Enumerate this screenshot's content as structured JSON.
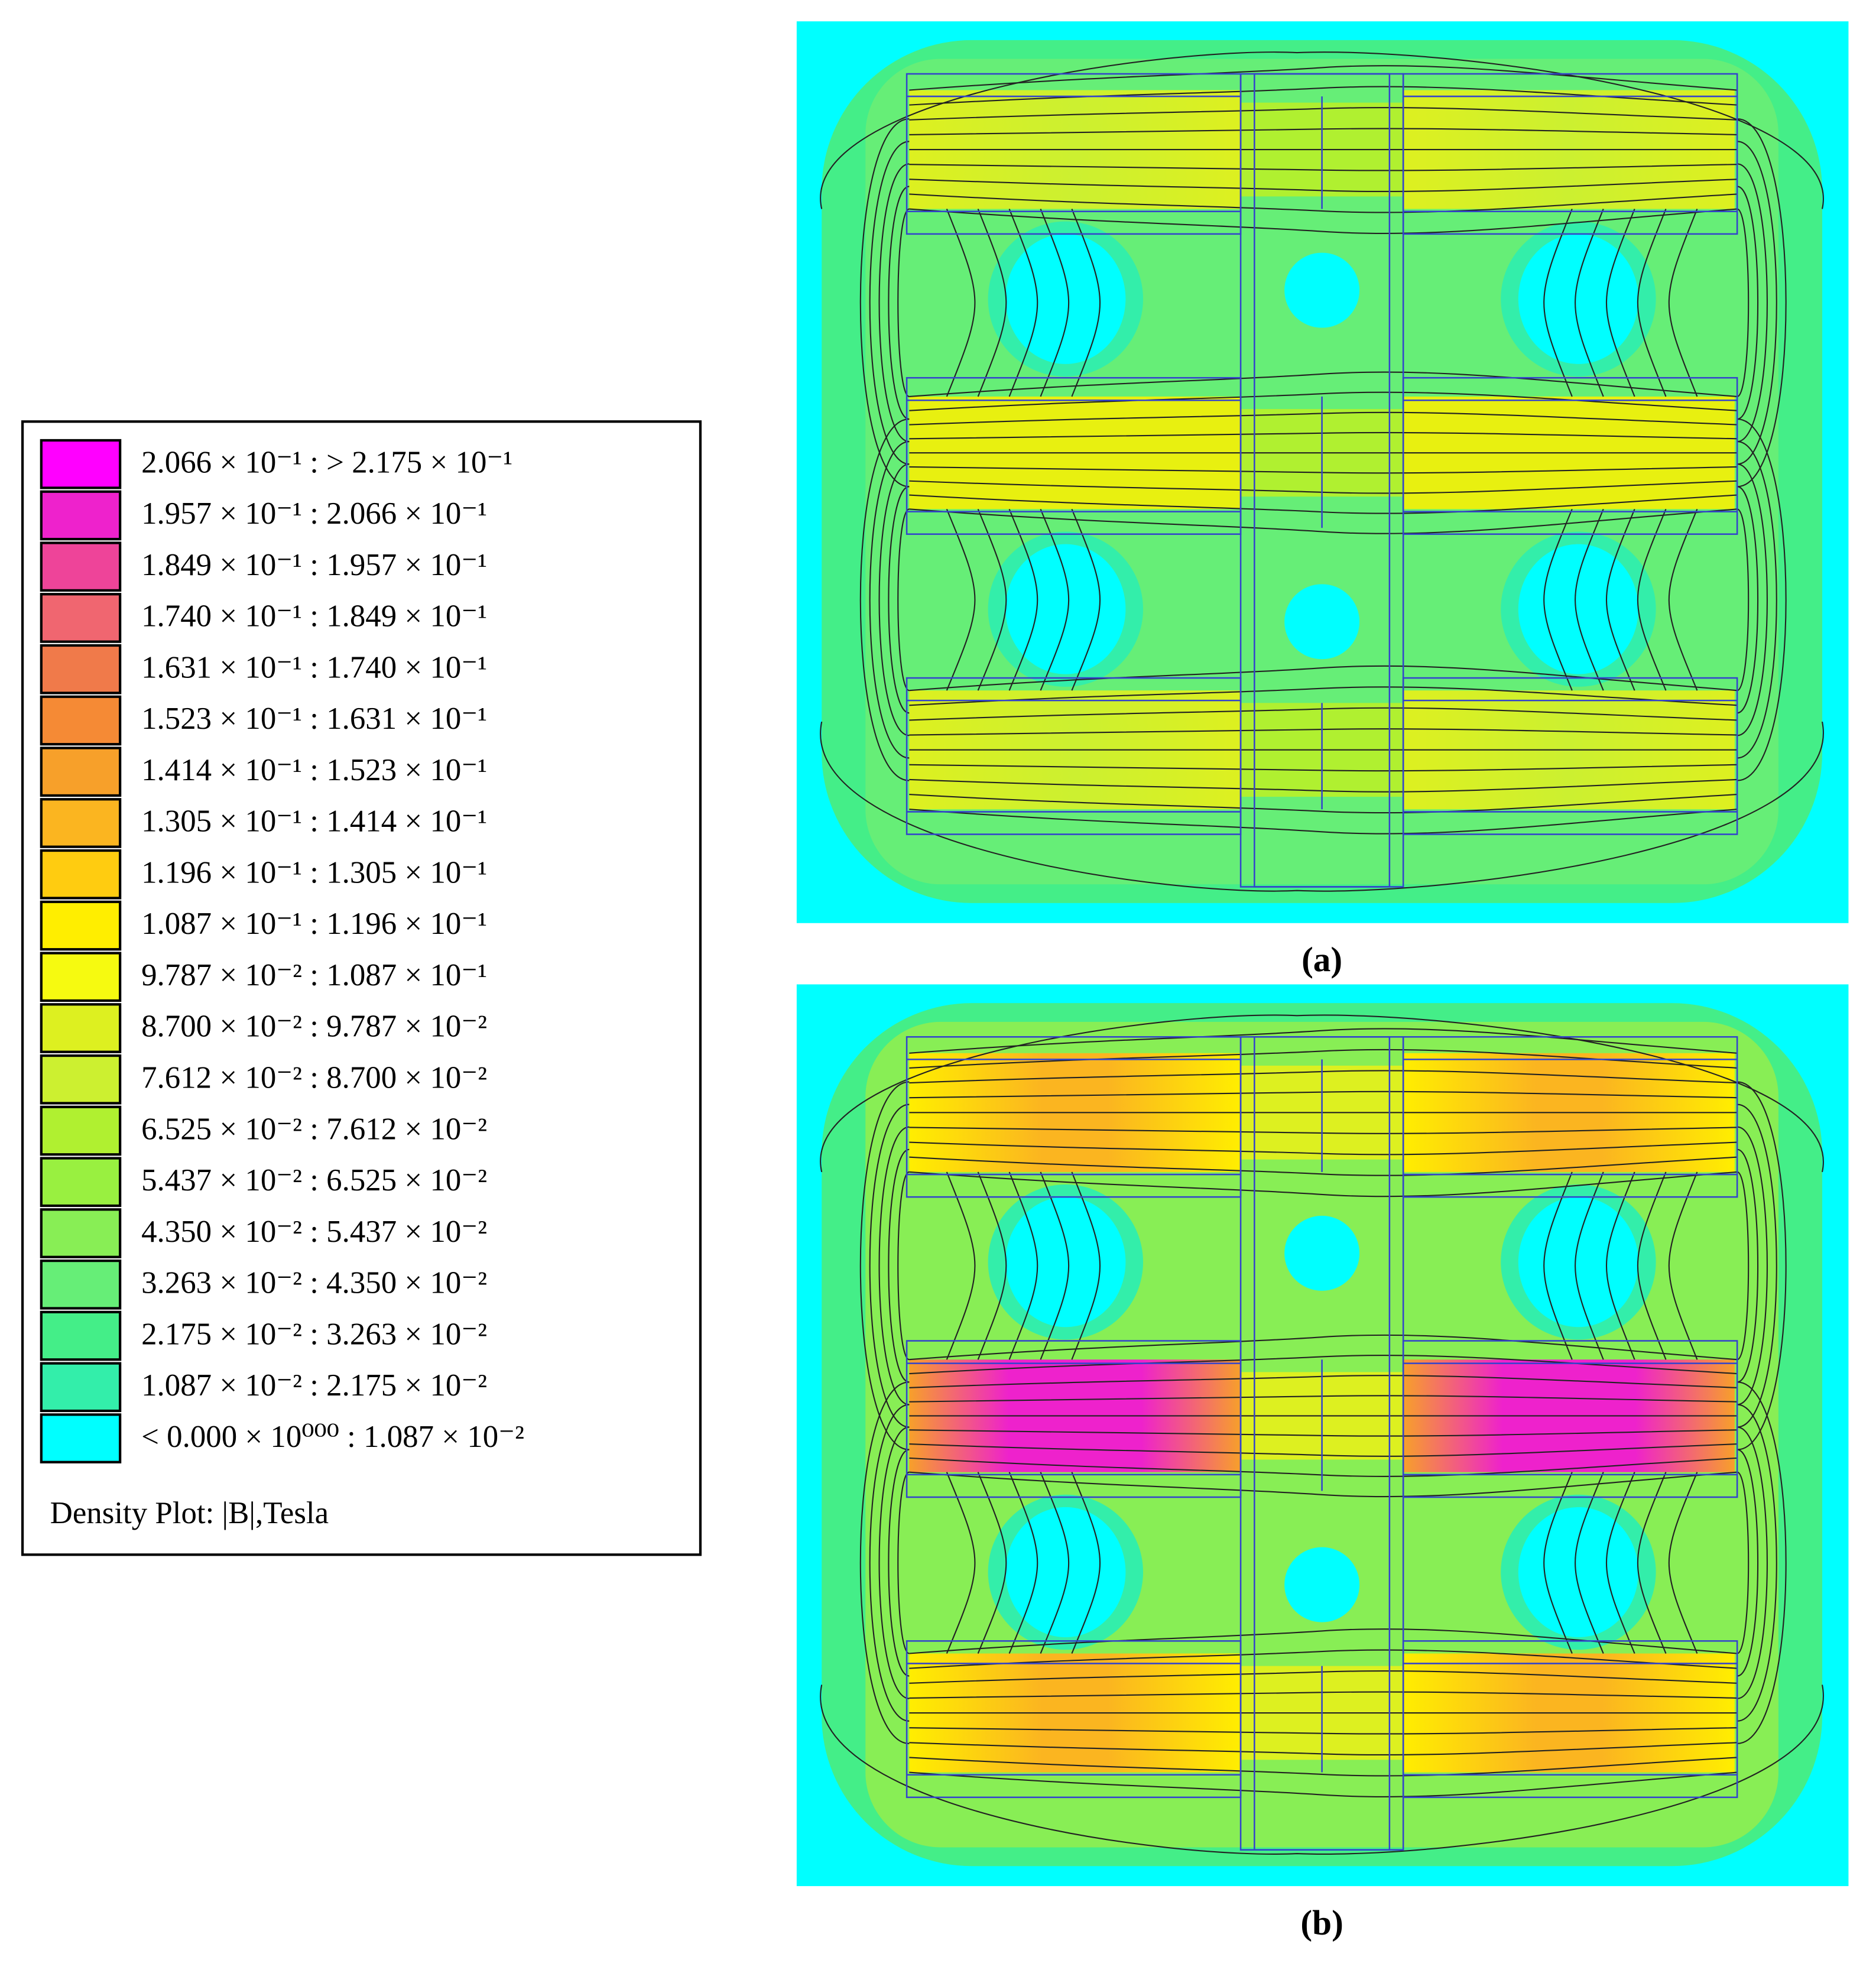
{
  "legend": {
    "entries": [
      {
        "label": "2.066 × 10⁻¹ : > 2.175 × 10⁻¹",
        "color": "#ff00ff"
      },
      {
        "label": "1.957 × 10⁻¹ : 2.066 × 10⁻¹",
        "color": "#ee22cc"
      },
      {
        "label": "1.849 × 10⁻¹ : 1.957 × 10⁻¹",
        "color": "#ee4499"
      },
      {
        "label": "1.740 × 10⁻¹ : 1.849 × 10⁻¹",
        "color": "#f06670"
      },
      {
        "label": "1.631 × 10⁻¹ : 1.740 × 10⁻¹",
        "color": "#f07a4a"
      },
      {
        "label": "1.523 × 10⁻¹ : 1.631 × 10⁻¹",
        "color": "#f58a35"
      },
      {
        "label": "1.414 × 10⁻¹ : 1.523 × 10⁻¹",
        "color": "#f7a02a"
      },
      {
        "label": "1.305 × 10⁻¹ : 1.414 × 10⁻¹",
        "color": "#fbb520"
      },
      {
        "label": "1.196 × 10⁻¹ : 1.305 × 10⁻¹",
        "color": "#ffcc10"
      },
      {
        "label": "1.087 × 10⁻¹ : 1.196 × 10⁻¹",
        "color": "#ffee00"
      },
      {
        "label": "9.787 × 10⁻² : 1.087 × 10⁻¹",
        "color": "#f6fa10"
      },
      {
        "label": "8.700 × 10⁻² : 9.787 × 10⁻²",
        "color": "#ddf020"
      },
      {
        "label": "7.612 × 10⁻² : 8.700 × 10⁻²",
        "color": "#ccf030"
      },
      {
        "label": "6.525 × 10⁻² : 7.612 × 10⁻²",
        "color": "#b0f030"
      },
      {
        "label": "5.437 × 10⁻² : 6.525 × 10⁻²",
        "color": "#99f040"
      },
      {
        "label": "4.350 × 10⁻² : 5.437 × 10⁻²",
        "color": "#88ee55"
      },
      {
        "label": "3.263 × 10⁻² : 4.350 × 10⁻²",
        "color": "#66ee77"
      },
      {
        "label": "2.175 × 10⁻² : 3.263 × 10⁻²",
        "color": "#44ee88"
      },
      {
        "label": "1.087 × 10⁻² : 2.175 × 10⁻²",
        "color": "#33eeaa"
      },
      {
        "label": "< 0.000 × 10⁰⁰⁰ : 1.087 × 10⁻²",
        "color": "#00ffff"
      }
    ],
    "title": "Density Plot: |B|,Tesla"
  },
  "panels": [
    {
      "caption": "(a)"
    },
    {
      "caption": "(b)"
    }
  ]
}
